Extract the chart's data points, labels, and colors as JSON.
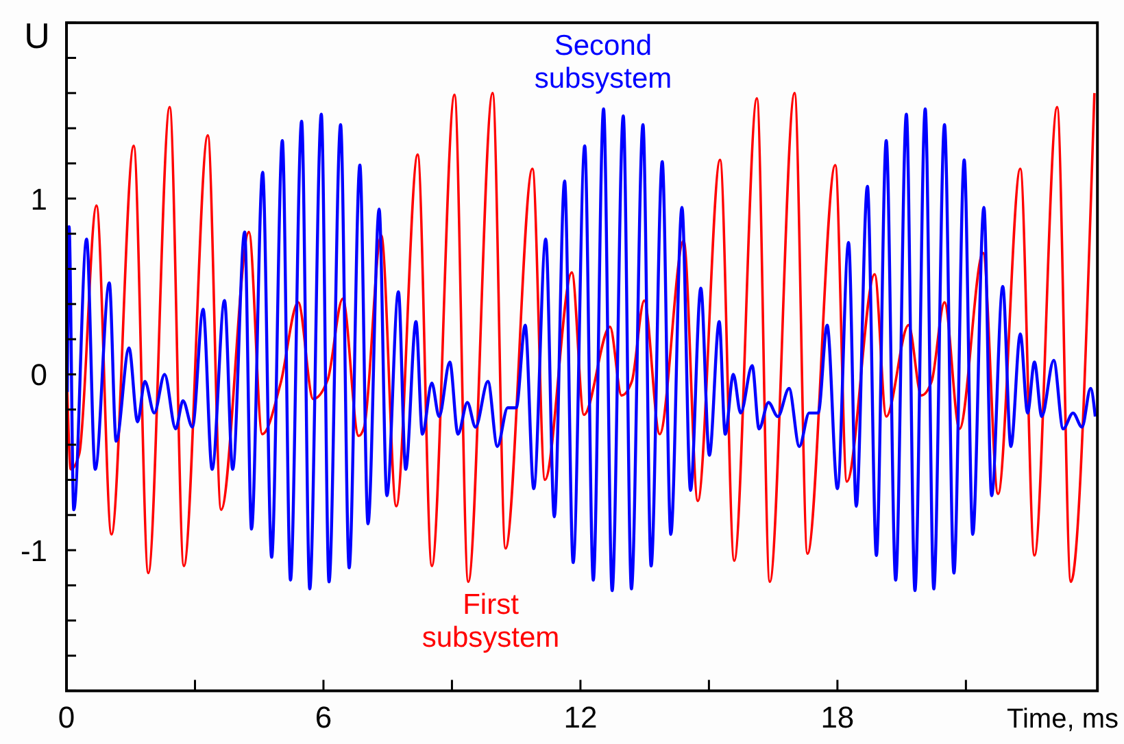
{
  "chart_data": {
    "type": "line",
    "xlabel": "Time, ms",
    "ylabel": "U",
    "xlim": [
      0,
      24.07
    ],
    "ylim": [
      -1.8,
      2
    ],
    "xticks": [
      0,
      {
        "value": 3,
        "label": null
      },
      6,
      {
        "value": 9,
        "label": null
      },
      12,
      {
        "value": 15,
        "label": null
      },
      18,
      {
        "value": 21,
        "label": null
      }
    ],
    "yticks": [
      {
        "value": -1.8,
        "label": null
      },
      {
        "value": -1.6,
        "label": null
      },
      {
        "value": -1.4,
        "label": null
      },
      {
        "value": -1.2,
        "label": null
      },
      -1,
      {
        "value": -0.8,
        "label": null
      },
      {
        "value": -0.6,
        "label": null
      },
      {
        "value": -0.4,
        "label": null
      },
      {
        "value": -0.2,
        "label": null
      },
      0,
      {
        "value": 0.2,
        "label": null
      },
      {
        "value": 0.4,
        "label": null
      },
      {
        "value": 0.6,
        "label": null
      },
      {
        "value": 0.8,
        "label": null
      },
      1,
      {
        "value": 1.2,
        "label": null
      },
      {
        "value": 1.4,
        "label": null
      },
      {
        "value": 1.6,
        "label": null
      },
      {
        "value": 1.8,
        "label": null
      },
      {
        "value": 2,
        "label": null
      }
    ],
    "grid": false,
    "legend": false,
    "marker": "none",
    "line_style": "solid",
    "series": [
      {
        "name": "First subsystem",
        "color": "#ff0000",
        "x": [
          0.02,
          0.1,
          0.3,
          0.7,
          1.05,
          1.57,
          1.91,
          2.41,
          2.74,
          3.3,
          3.61,
          4.26,
          4.57,
          5.0,
          5.41,
          5.76,
          6.1,
          6.45,
          6.82,
          6.95,
          7.35,
          7.7,
          8.2,
          8.53,
          9.06,
          9.38,
          9.95,
          10.25,
          10.88,
          11.17,
          11.8,
          12.08,
          12.69,
          12.96,
          13.2,
          13.49,
          13.85,
          14.41,
          14.74,
          15.26,
          15.59,
          16.12,
          16.42,
          17.0,
          17.3,
          17.95,
          18.22,
          18.87,
          19.14,
          19.66,
          19.96,
          20.2,
          20.5,
          20.85,
          21.4,
          21.75,
          22.27,
          22.6,
          23.13,
          23.45,
          24.0
        ],
        "values": [
          -0.1,
          -0.54,
          -0.45,
          0.96,
          -0.91,
          1.3,
          -1.13,
          1.52,
          -1.09,
          1.36,
          -0.77,
          0.81,
          -0.34,
          -0.05,
          0.41,
          -0.14,
          -0.03,
          0.43,
          -0.35,
          -0.3,
          0.79,
          -0.75,
          1.25,
          -1.09,
          1.59,
          -1.18,
          1.6,
          -0.99,
          1.17,
          -0.6,
          0.58,
          -0.23,
          0.27,
          -0.12,
          -0.04,
          0.42,
          -0.34,
          0.76,
          -0.72,
          1.22,
          -1.06,
          1.57,
          -1.18,
          1.6,
          -1.02,
          1.19,
          -0.61,
          0.57,
          -0.24,
          0.28,
          -0.12,
          -0.04,
          0.41,
          -0.31,
          0.69,
          -0.68,
          1.17,
          -1.03,
          1.52,
          -1.18,
          1.6
        ]
      },
      {
        "name": "Second subsystem",
        "color": "#0000ff",
        "x": [
          0.02,
          0.06,
          0.17,
          0.47,
          0.67,
          1.0,
          1.16,
          1.46,
          1.66,
          1.83,
          2.05,
          2.29,
          2.55,
          2.72,
          2.94,
          3.19,
          3.4,
          3.69,
          3.88,
          4.16,
          4.32,
          4.58,
          4.79,
          5.04,
          5.23,
          5.49,
          5.68,
          5.95,
          6.13,
          6.4,
          6.6,
          6.85,
          7.04,
          7.3,
          7.48,
          7.75,
          7.92,
          8.16,
          8.31,
          8.53,
          8.7,
          8.95,
          9.14,
          9.36,
          9.55,
          9.84,
          10.06,
          10.3,
          10.5,
          10.71,
          10.91,
          11.19,
          11.39,
          11.63,
          11.83,
          12.1,
          12.3,
          12.54,
          12.74,
          13.0,
          13.19,
          13.46,
          13.65,
          13.91,
          14.11,
          14.37,
          14.57,
          14.81,
          15.01,
          15.24,
          15.38,
          15.57,
          15.74,
          16.01,
          16.17,
          16.39,
          16.61,
          16.87,
          17.11,
          17.34,
          17.55,
          17.76,
          18.0,
          18.26,
          18.44,
          18.7,
          18.91,
          19.14,
          19.36,
          19.61,
          19.81,
          20.05,
          20.25,
          20.5,
          20.72,
          20.96,
          21.16,
          21.42,
          21.6,
          21.86,
          22.05,
          22.27,
          22.44,
          22.6,
          22.77,
          23.05,
          23.27,
          23.5,
          23.71,
          23.91,
          24.02
        ],
        "values": [
          -0.1,
          0.84,
          -0.77,
          0.77,
          -0.54,
          0.52,
          -0.38,
          0.15,
          -0.27,
          -0.04,
          -0.22,
          0.0,
          -0.31,
          -0.15,
          -0.3,
          0.37,
          -0.54,
          0.42,
          -0.54,
          0.81,
          -0.88,
          1.15,
          -1.04,
          1.33,
          -1.17,
          1.44,
          -1.22,
          1.48,
          -1.18,
          1.42,
          -1.1,
          1.19,
          -0.85,
          0.94,
          -0.69,
          0.47,
          -0.54,
          0.3,
          -0.34,
          -0.05,
          -0.24,
          0.07,
          -0.34,
          -0.16,
          -0.3,
          -0.04,
          -0.41,
          -0.19,
          -0.19,
          0.28,
          -0.65,
          0.77,
          -0.81,
          1.1,
          -1.07,
          1.3,
          -1.17,
          1.51,
          -1.23,
          1.47,
          -1.22,
          1.42,
          -1.09,
          1.21,
          -0.91,
          0.95,
          -0.66,
          0.49,
          -0.46,
          0.3,
          -0.34,
          0.0,
          -0.22,
          0.05,
          -0.31,
          -0.16,
          -0.24,
          -0.08,
          -0.41,
          -0.22,
          -0.22,
          0.28,
          -0.65,
          0.75,
          -0.75,
          1.07,
          -1.03,
          1.33,
          -1.17,
          1.48,
          -1.23,
          1.51,
          -1.22,
          1.42,
          -1.13,
          1.22,
          -0.91,
          0.95,
          -0.69,
          0.5,
          -0.41,
          0.23,
          -0.22,
          0.07,
          -0.24,
          0.08,
          -0.31,
          -0.22,
          -0.3,
          -0.08,
          -0.24
        ]
      }
    ]
  }
}
